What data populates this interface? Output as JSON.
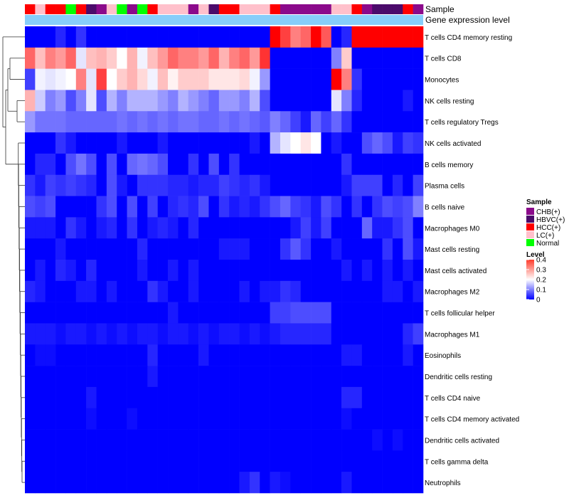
{
  "chart_data": {
    "type": "heatmap",
    "title": "",
    "annotation_labels": {
      "sample": "Sample",
      "gene": "Gene expression level"
    },
    "sample_colors": {
      "CHB(+)": "#8B0A8B",
      "HBVC(+)": "#4B0B6B",
      "HCC(+)": "#FF0000",
      "LC(+)": "#FFC0CB",
      "Normal": "#00FF00"
    },
    "gene_color": "#87CEFA",
    "samples": [
      "HCC(+)",
      "LC(+)",
      "HCC(+)",
      "HCC(+)",
      "Normal",
      "HCC(+)",
      "HBVC(+)",
      "CHB(+)",
      "LC(+)",
      "Normal",
      "CHB(+)",
      "Normal",
      "HCC(+)",
      "LC(+)",
      "LC(+)",
      "LC(+)",
      "CHB(+)",
      "LC(+)",
      "HBVC(+)",
      "HCC(+)",
      "HCC(+)",
      "LC(+)",
      "LC(+)",
      "LC(+)",
      "HCC(+)",
      "CHB(+)",
      "CHB(+)",
      "CHB(+)",
      "CHB(+)",
      "CHB(+)",
      "LC(+)",
      "LC(+)",
      "HCC(+)",
      "CHB(+)",
      "HBVC(+)",
      "HBVC(+)",
      "HBVC(+)",
      "HCC(+)",
      "CHB(+)"
    ],
    "cell_types": [
      "T cells CD4 memory resting",
      "T cells CD8",
      "Monocytes",
      "NK cells resting",
      "T cells regulatory  Tregs",
      "NK cells activated",
      "B cells memory",
      "Plasma cells",
      "B cells naive",
      "Macrophages M0",
      "Mast cells resting",
      "Mast cells activated",
      "Macrophages M2",
      "T cells follicular helper",
      "Macrophages M1",
      "Eosinophils",
      "Dendritic cells resting",
      "T cells CD4 naive",
      "T cells CD4 memory activated",
      "Dendritic cells activated",
      "T cells gamma delta",
      "Neutrophils"
    ],
    "values": [
      [
        0.0,
        0.0,
        0.0,
        0.03,
        0.0,
        0.04,
        0.0,
        0.0,
        0.0,
        0.0,
        0.0,
        0.0,
        0.0,
        0.0,
        0.0,
        0.0,
        0.0,
        0.0,
        0.0,
        0.0,
        0.0,
        0.0,
        0.0,
        0.0,
        0.4,
        0.35,
        0.3,
        0.32,
        0.4,
        0.33,
        0.0,
        0.03,
        0.4,
        0.4,
        0.4,
        0.4,
        0.4,
        0.4,
        0.4
      ],
      [
        0.32,
        0.25,
        0.3,
        0.28,
        0.32,
        0.18,
        0.25,
        0.26,
        0.24,
        0.2,
        0.26,
        0.19,
        0.25,
        0.28,
        0.32,
        0.3,
        0.3,
        0.28,
        0.32,
        0.26,
        0.3,
        0.32,
        0.28,
        0.36,
        0.0,
        0.0,
        0.0,
        0.0,
        0.0,
        0.0,
        0.1,
        0.24,
        0.0,
        0.0,
        0.0,
        0.0,
        0.0,
        0.0,
        0.0
      ],
      [
        0.05,
        0.19,
        0.18,
        0.19,
        0.2,
        0.3,
        0.18,
        0.35,
        0.2,
        0.24,
        0.26,
        0.23,
        0.19,
        0.25,
        0.21,
        0.24,
        0.24,
        0.24,
        0.22,
        0.22,
        0.22,
        0.23,
        0.19,
        0.12,
        0.0,
        0.0,
        0.0,
        0.0,
        0.0,
        0.0,
        0.4,
        0.3,
        0.04,
        0.0,
        0.0,
        0.0,
        0.0,
        0.0,
        0.0
      ],
      [
        0.26,
        0.16,
        0.1,
        0.12,
        0.06,
        0.1,
        0.18,
        0.06,
        0.14,
        0.1,
        0.14,
        0.14,
        0.14,
        0.12,
        0.1,
        0.14,
        0.12,
        0.1,
        0.08,
        0.12,
        0.12,
        0.1,
        0.14,
        0.06,
        0.0,
        0.0,
        0.0,
        0.0,
        0.0,
        0.0,
        0.18,
        0.1,
        0.03,
        0.0,
        0.0,
        0.0,
        0.0,
        0.02,
        0.0
      ],
      [
        0.12,
        0.09,
        0.09,
        0.09,
        0.08,
        0.08,
        0.08,
        0.08,
        0.08,
        0.09,
        0.08,
        0.09,
        0.08,
        0.09,
        0.08,
        0.09,
        0.09,
        0.08,
        0.08,
        0.09,
        0.08,
        0.09,
        0.08,
        0.07,
        0.1,
        0.08,
        0.05,
        0.02,
        0.08,
        0.05,
        0.08,
        0.04,
        0.0,
        0.0,
        0.0,
        0.0,
        0.0,
        0.0,
        0.0
      ],
      [
        0.0,
        0.0,
        0.0,
        0.04,
        0.02,
        0.0,
        0.0,
        0.0,
        0.0,
        0.02,
        0.0,
        0.0,
        0.0,
        0.02,
        0.0,
        0.0,
        0.0,
        0.0,
        0.0,
        0.0,
        0.0,
        0.0,
        0.02,
        0.0,
        0.14,
        0.18,
        0.2,
        0.22,
        0.2,
        0.0,
        0.02,
        0.0,
        0.0,
        0.06,
        0.08,
        0.06,
        0.02,
        0.05,
        0.04
      ],
      [
        0.0,
        0.03,
        0.03,
        0.0,
        0.06,
        0.09,
        0.06,
        0.0,
        0.06,
        0.0,
        0.08,
        0.09,
        0.08,
        0.06,
        0.0,
        0.0,
        0.04,
        0.0,
        0.06,
        0.0,
        0.04,
        0.0,
        0.0,
        0.0,
        0.0,
        0.0,
        0.0,
        0.0,
        0.0,
        0.0,
        0.0,
        0.04,
        0.0,
        0.0,
        0.0,
        0.0,
        0.0,
        0.0,
        0.0
      ],
      [
        0.04,
        0.02,
        0.05,
        0.04,
        0.05,
        0.04,
        0.03,
        0.0,
        0.06,
        0.02,
        0.0,
        0.04,
        0.04,
        0.04,
        0.03,
        0.03,
        0.02,
        0.03,
        0.03,
        0.05,
        0.04,
        0.03,
        0.04,
        0.02,
        0.0,
        0.0,
        0.0,
        0.0,
        0.0,
        0.0,
        0.0,
        0.02,
        0.05,
        0.05,
        0.05,
        0.0,
        0.03,
        0.0,
        0.05
      ],
      [
        0.06,
        0.05,
        0.06,
        0.0,
        0.0,
        0.0,
        0.0,
        0.04,
        0.06,
        0.0,
        0.06,
        0.0,
        0.05,
        0.0,
        0.03,
        0.04,
        0.03,
        0.06,
        0.0,
        0.04,
        0.02,
        0.03,
        0.02,
        0.04,
        0.06,
        0.08,
        0.05,
        0.04,
        0.02,
        0.06,
        0.04,
        0.0,
        0.04,
        0.0,
        0.04,
        0.06,
        0.05,
        0.06,
        0.1
      ],
      [
        0.02,
        0.02,
        0.02,
        0.0,
        0.04,
        0.02,
        0.0,
        0.02,
        0.03,
        0.0,
        0.04,
        0.0,
        0.02,
        0.03,
        0.02,
        0.0,
        0.03,
        0.0,
        0.0,
        0.0,
        0.0,
        0.0,
        0.0,
        0.0,
        0.0,
        0.0,
        0.02,
        0.05,
        0.02,
        0.05,
        0.0,
        0.0,
        0.0,
        0.08,
        0.02,
        0.02,
        0.04,
        0.06,
        0.0
      ],
      [
        0.0,
        0.0,
        0.0,
        0.02,
        0.0,
        0.0,
        0.0,
        0.0,
        0.0,
        0.0,
        0.0,
        0.03,
        0.0,
        0.0,
        0.0,
        0.0,
        0.0,
        0.0,
        0.0,
        0.02,
        0.02,
        0.02,
        0.0,
        0.0,
        0.0,
        0.04,
        0.07,
        0.04,
        0.0,
        0.0,
        0.02,
        0.0,
        0.0,
        0.0,
        0.0,
        0.04,
        0.0,
        0.06,
        0.02
      ],
      [
        0.0,
        0.02,
        0.0,
        0.03,
        0.02,
        0.0,
        0.03,
        0.0,
        0.0,
        0.0,
        0.0,
        0.02,
        0.0,
        0.0,
        0.02,
        0.0,
        0.02,
        0.0,
        0.0,
        0.0,
        0.0,
        0.0,
        0.0,
        0.0,
        0.0,
        0.0,
        0.0,
        0.0,
        0.0,
        0.0,
        0.0,
        0.02,
        0.0,
        0.02,
        0.0,
        0.02,
        0.0,
        0.02,
        0.0
      ],
      [
        0.03,
        0.02,
        0.0,
        0.0,
        0.0,
        0.02,
        0.02,
        0.0,
        0.02,
        0.0,
        0.0,
        0.0,
        0.04,
        0.02,
        0.0,
        0.0,
        0.02,
        0.0,
        0.0,
        0.0,
        0.0,
        0.02,
        0.0,
        0.02,
        0.02,
        0.04,
        0.03,
        0.0,
        0.0,
        0.0,
        0.0,
        0.0,
        0.0,
        0.0,
        0.0,
        0.02,
        0.02,
        0.0,
        0.02
      ],
      [
        0.0,
        0.0,
        0.0,
        0.0,
        0.0,
        0.0,
        0.0,
        0.0,
        0.0,
        0.0,
        0.0,
        0.0,
        0.0,
        0.0,
        0.02,
        0.0,
        0.0,
        0.0,
        0.0,
        0.0,
        0.0,
        0.0,
        0.0,
        0.0,
        0.05,
        0.05,
        0.06,
        0.06,
        0.06,
        0.06,
        0.0,
        0.0,
        0.0,
        0.0,
        0.0,
        0.0,
        0.0,
        0.0,
        0.0
      ],
      [
        0.02,
        0.02,
        0.02,
        0.01,
        0.02,
        0.02,
        0.01,
        0.02,
        0.01,
        0.02,
        0.01,
        0.02,
        0.02,
        0.01,
        0.02,
        0.02,
        0.01,
        0.02,
        0.01,
        0.02,
        0.02,
        0.01,
        0.02,
        0.01,
        0.02,
        0.03,
        0.03,
        0.03,
        0.03,
        0.03,
        0.0,
        0.0,
        0.0,
        0.0,
        0.0,
        0.0,
        0.0,
        0.03,
        0.05
      ],
      [
        0.0,
        0.01,
        0.01,
        0.0,
        0.0,
        0.0,
        0.0,
        0.0,
        0.0,
        0.0,
        0.0,
        0.0,
        0.03,
        0.0,
        0.0,
        0.0,
        0.0,
        0.02,
        0.0,
        0.0,
        0.0,
        0.0,
        0.0,
        0.0,
        0.0,
        0.0,
        0.0,
        0.0,
        0.0,
        0.0,
        0.0,
        0.02,
        0.02,
        0.0,
        0.0,
        0.0,
        0.0,
        0.02,
        0.0
      ],
      [
        0.0,
        0.0,
        0.0,
        0.0,
        0.0,
        0.0,
        0.0,
        0.0,
        0.0,
        0.0,
        0.0,
        0.0,
        0.02,
        0.0,
        0.0,
        0.0,
        0.0,
        0.0,
        0.0,
        0.0,
        0.0,
        0.0,
        0.0,
        0.0,
        0.0,
        0.0,
        0.0,
        0.0,
        0.0,
        0.0,
        0.0,
        0.0,
        0.0,
        0.0,
        0.0,
        0.0,
        0.0,
        0.0,
        0.0
      ],
      [
        0.0,
        0.0,
        0.0,
        0.0,
        0.0,
        0.0,
        0.02,
        0.0,
        0.0,
        0.0,
        0.0,
        0.0,
        0.0,
        0.0,
        0.0,
        0.0,
        0.0,
        0.0,
        0.0,
        0.0,
        0.0,
        0.0,
        0.0,
        0.0,
        0.0,
        0.0,
        0.0,
        0.0,
        0.0,
        0.0,
        0.0,
        0.03,
        0.03,
        0.0,
        0.0,
        0.0,
        0.0,
        0.0,
        0.0
      ],
      [
        0.0,
        0.0,
        0.0,
        0.0,
        0.0,
        0.0,
        0.01,
        0.0,
        0.0,
        0.0,
        0.01,
        0.0,
        0.0,
        0.0,
        0.0,
        0.0,
        0.0,
        0.0,
        0.0,
        0.0,
        0.0,
        0.0,
        0.0,
        0.0,
        0.0,
        0.0,
        0.0,
        0.0,
        0.0,
        0.0,
        0.0,
        0.01,
        0.0,
        0.0,
        0.0,
        0.0,
        0.0,
        0.0,
        0.0
      ],
      [
        0.0,
        0.0,
        0.0,
        0.0,
        0.0,
        0.0,
        0.0,
        0.0,
        0.0,
        0.0,
        0.0,
        0.0,
        0.0,
        0.0,
        0.0,
        0.0,
        0.0,
        0.0,
        0.0,
        0.0,
        0.0,
        0.0,
        0.0,
        0.0,
        0.0,
        0.0,
        0.0,
        0.0,
        0.0,
        0.0,
        0.0,
        0.0,
        0.0,
        0.0,
        0.01,
        0.0,
        0.01,
        0.0,
        0.0
      ],
      [
        0.0,
        0.0,
        0.0,
        0.0,
        0.0,
        0.0,
        0.0,
        0.0,
        0.0,
        0.0,
        0.0,
        0.0,
        0.0,
        0.0,
        0.0,
        0.0,
        0.0,
        0.0,
        0.0,
        0.0,
        0.0,
        0.0,
        0.0,
        0.0,
        0.0,
        0.0,
        0.0,
        0.0,
        0.0,
        0.0,
        0.0,
        0.0,
        0.0,
        0.0,
        0.0,
        0.0,
        0.0,
        0.0,
        0.0
      ],
      [
        0.0,
        0.0,
        0.0,
        0.0,
        0.0,
        0.0,
        0.0,
        0.0,
        0.0,
        0.0,
        0.0,
        0.0,
        0.0,
        0.0,
        0.0,
        0.0,
        0.0,
        0.0,
        0.0,
        0.0,
        0.0,
        0.02,
        0.04,
        0.0,
        0.02,
        0.01,
        0.0,
        0.0,
        0.0,
        0.0,
        0.0,
        0.02,
        0.0,
        0.0,
        0.0,
        0.0,
        0.0,
        0.0,
        0.0
      ]
    ],
    "color_scale": {
      "low": "#0000FF",
      "mid": "#FFFFFF",
      "high": "#FF0000",
      "min": 0,
      "mid_value": 0.2,
      "max": 0.4
    },
    "legend": {
      "sample_title": "Sample",
      "sample_entries": [
        "CHB(+)",
        "HBVC(+)",
        "HCC(+)",
        "LC(+)",
        "Normal"
      ],
      "level_title": "Level",
      "level_ticks": [
        "0.4",
        "0.3",
        "0.2",
        "0.1",
        "0"
      ],
      "level_tick_values": [
        0.4,
        0.3,
        0.2,
        0.1,
        0
      ],
      "placement": "right"
    }
  }
}
